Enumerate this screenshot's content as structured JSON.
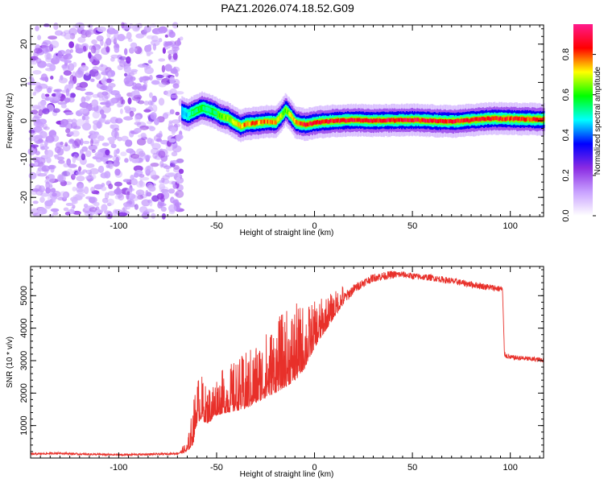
{
  "title": "PAZ1.2026.074.18.52.G09",
  "chart_data": [
    {
      "type": "heatmap",
      "xlabel": "Height of straight line (km)",
      "ylabel": "Frequency (Hz)",
      "xlim": [
        -145,
        117
      ],
      "ylim": [
        -25,
        25
      ],
      "xticks": [
        -100,
        -50,
        0,
        50,
        100
      ],
      "xtick_labels": [
        "-100",
        "-50",
        "0",
        "50",
        "100"
      ],
      "yticks": [
        -20,
        -10,
        0,
        10,
        20
      ],
      "ytick_labels": [
        "-20",
        "-10",
        "0",
        "10",
        "20"
      ],
      "colorbar": {
        "label": "Normalized spectral amplitude",
        "range": [
          0,
          0.95
        ],
        "ticks": [
          0,
          0.2,
          0.4,
          0.6,
          0.8
        ],
        "tick_labels": [
          "0.0",
          "0.2",
          "0.4",
          "0.6",
          "0.8"
        ],
        "colormap": [
          "#ffffff",
          "#c8a0ff",
          "#8a2be2",
          "#0000ff",
          "#00ffff",
          "#00ff00",
          "#ffff00",
          "#ff0000",
          "#ff1a8c"
        ]
      },
      "noise_region_x": [
        -145,
        -68
      ],
      "signal_track": {
        "x": [
          -68,
          -65,
          -62,
          -58,
          -55,
          -52,
          -48,
          -45,
          -42,
          -38,
          -35,
          -30,
          -25,
          -20,
          -17,
          -15,
          -12,
          -10,
          -7,
          -5,
          0,
          5,
          10,
          20,
          30,
          40,
          50,
          60,
          70,
          80,
          90,
          100,
          110,
          117
        ],
        "freq": [
          2.2,
          1.5,
          2.3,
          3.4,
          3.0,
          2.4,
          1.2,
          0.8,
          -0.2,
          -1.4,
          -0.8,
          -0.6,
          -0.2,
          -0.3,
          1.5,
          3.0,
          1.0,
          -0.4,
          -0.8,
          -1.0,
          -0.5,
          -0.2,
          0.0,
          0.2,
          0.0,
          0.1,
          0.2,
          0.0,
          -0.2,
          0.2,
          0.6,
          0.5,
          0.4,
          0.3
        ],
        "peak_amplitude": [
          0.45,
          0.5,
          0.6,
          0.6,
          0.55,
          0.6,
          0.65,
          0.7,
          0.75,
          0.8,
          0.85,
          0.85,
          0.85,
          0.8,
          0.7,
          0.65,
          0.75,
          0.85,
          0.9,
          0.9,
          0.92,
          0.92,
          0.93,
          0.93,
          0.93,
          0.93,
          0.93,
          0.93,
          0.93,
          0.92,
          0.9,
          0.9,
          0.88,
          0.88
        ]
      }
    },
    {
      "type": "line",
      "xlabel": "Height of straight line (km)",
      "ylabel": "SNR (10 * v/v)",
      "xlim": [
        -145,
        117
      ],
      "ylim": [
        0,
        5900
      ],
      "xticks": [
        -100,
        -50,
        0,
        50,
        100
      ],
      "xtick_labels": [
        "-100",
        "-50",
        "0",
        "50",
        "100"
      ],
      "yticks": [
        1000,
        2000,
        3000,
        4000,
        5000
      ],
      "ytick_labels": [
        "1000",
        "2000",
        "3000",
        "4000",
        "5000"
      ],
      "color": "#e8302a",
      "series": [
        {
          "name": "SNR",
          "x": [
            -145,
            -130,
            -120,
            -110,
            -100,
            -90,
            -80,
            -70,
            -65,
            -62,
            -60,
            -58,
            -55,
            -52,
            -50,
            -45,
            -40,
            -35,
            -30,
            -25,
            -20,
            -15,
            -10,
            -8,
            -5,
            -3,
            0,
            5,
            10,
            15,
            20,
            25,
            30,
            35,
            40,
            45,
            50,
            60,
            70,
            80,
            90,
            96,
            97,
            98,
            100,
            105,
            110,
            117
          ],
          "base": [
            120,
            150,
            120,
            110,
            100,
            110,
            120,
            140,
            250,
            700,
            1400,
            1500,
            1300,
            1450,
            1600,
            1700,
            1800,
            1900,
            2100,
            2300,
            2500,
            2700,
            2900,
            3000,
            3200,
            3400,
            3700,
            4100,
            4500,
            4900,
            5200,
            5400,
            5550,
            5600,
            5650,
            5650,
            5600,
            5550,
            5450,
            5350,
            5250,
            5200,
            3200,
            3150,
            3100,
            3080,
            3050,
            3020
          ],
          "spread": [
            60,
            60,
            60,
            60,
            60,
            60,
            60,
            60,
            200,
            800,
            900,
            900,
            700,
            800,
            800,
            900,
            1000,
            1100,
            1200,
            1300,
            1400,
            1500,
            1500,
            1400,
            1300,
            1100,
            900,
            700,
            500,
            400,
            300,
            250,
            250,
            250,
            250,
            200,
            200,
            200,
            200,
            200,
            200,
            200,
            150,
            150,
            150,
            150,
            150,
            150
          ]
        }
      ]
    }
  ]
}
